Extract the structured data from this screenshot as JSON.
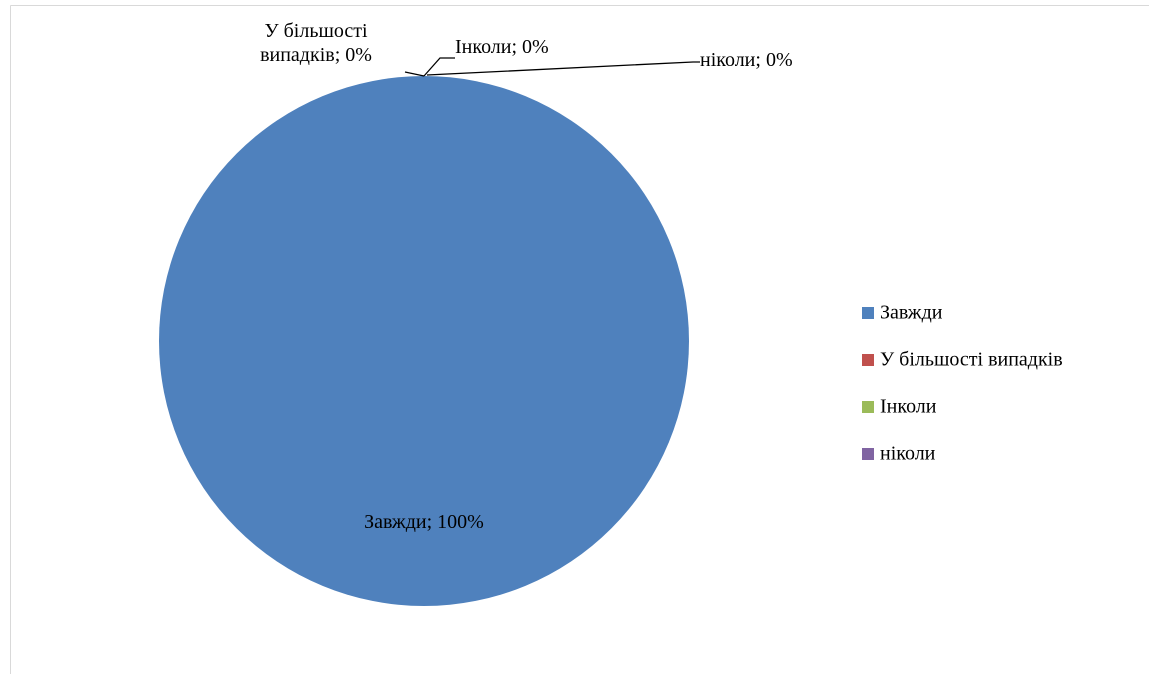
{
  "chart_data": {
    "type": "pie",
    "categories": [
      "Завжди",
      "У більшості випадків",
      "Інколи",
      "ніколи"
    ],
    "values": [
      100,
      0,
      0,
      0
    ],
    "value_labels": [
      "Завжди; 100%",
      "У більшості випадків; 0%",
      "Інколи; 0%",
      "ніколи; 0%"
    ],
    "colors": [
      "#4f81bd",
      "#c0504d",
      "#9bbb59",
      "#8064a2"
    ],
    "legend": "right"
  }
}
